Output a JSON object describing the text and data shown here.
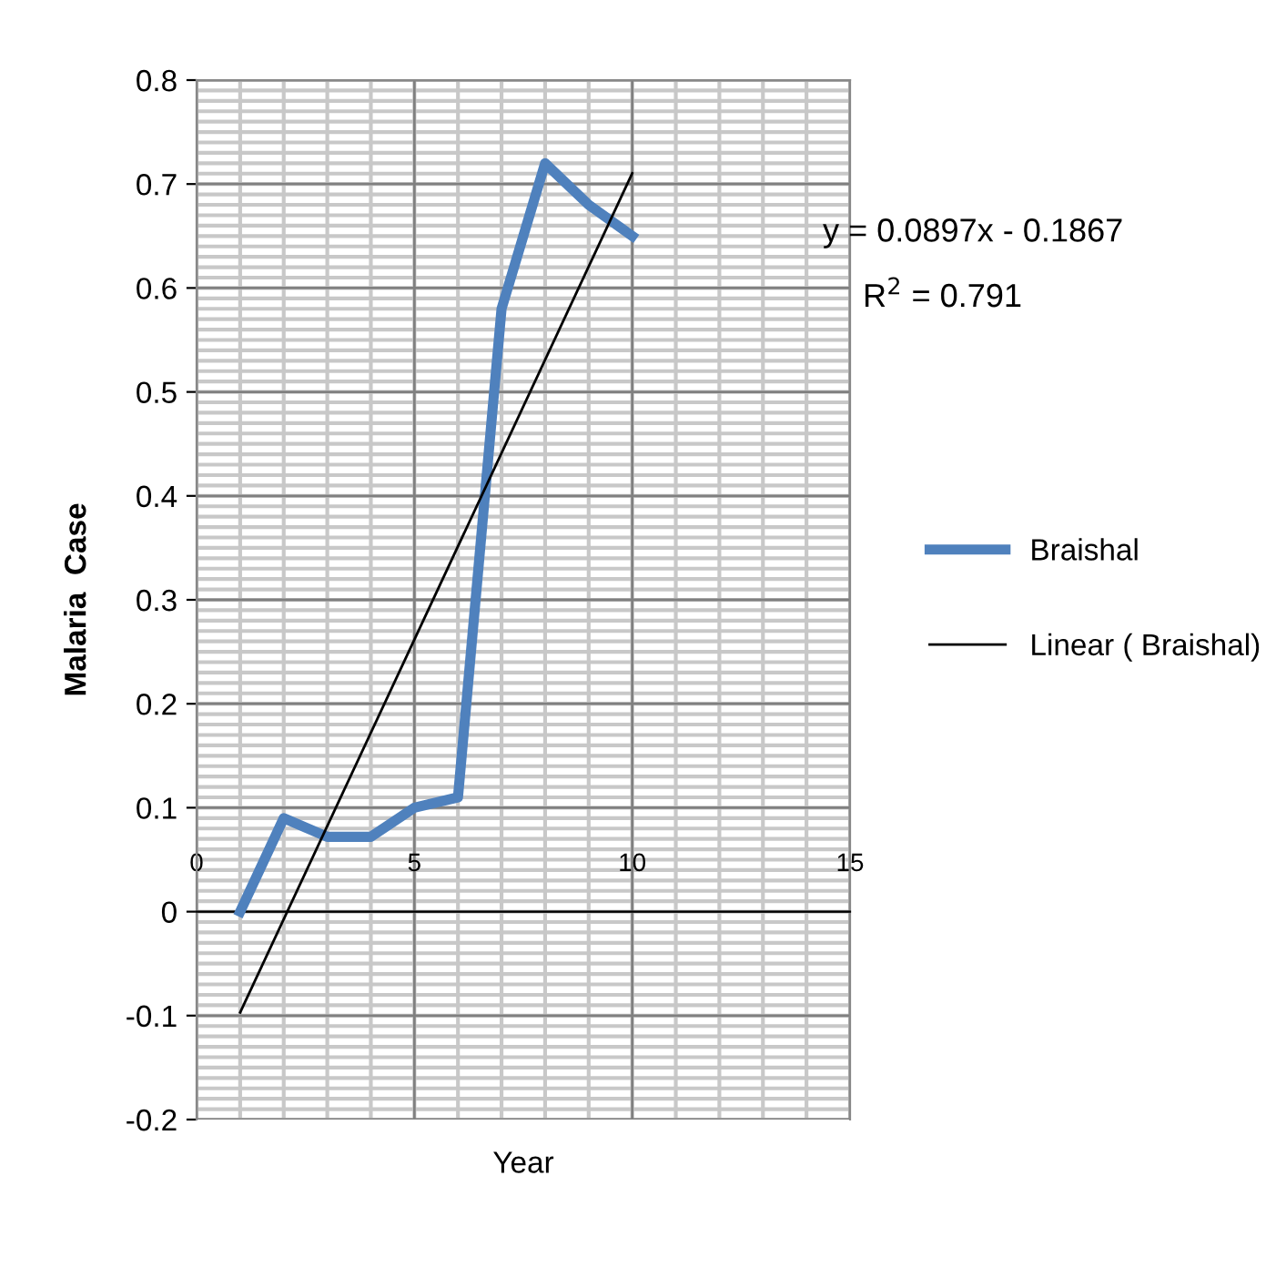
{
  "chart_data": {
    "type": "line",
    "xlabel": "Year",
    "ylabel": "Malaria  Case",
    "xlim": [
      0,
      15
    ],
    "xticks": [
      0,
      5,
      10,
      15
    ],
    "ylim": [
      -0.2,
      0.8
    ],
    "yticks": [
      -0.2,
      -0.1,
      0,
      0.1,
      0.2,
      0.3,
      0.4,
      0.5,
      0.6,
      0.7,
      0.8
    ],
    "x": [
      1,
      2,
      3,
      4,
      5,
      6,
      7,
      8,
      9,
      10
    ],
    "series": [
      {
        "name": "Braishal",
        "color": "#4f81bd",
        "values": [
          0.0,
          0.09,
          0.072,
          0.072,
          0.1,
          0.11,
          0.58,
          0.72,
          0.68,
          0.65
        ]
      },
      {
        "name": "Linear ( Braishal)",
        "color": "#000000",
        "x": [
          1,
          10
        ],
        "values": [
          -0.097,
          0.7103
        ]
      }
    ],
    "annotations": [
      "y = 0.0897x - 0.1867",
      "R$^{2}$ = 0.791"
    ],
    "grid": true,
    "legend": "right",
    "marker": "none",
    "line_style": "solid"
  }
}
